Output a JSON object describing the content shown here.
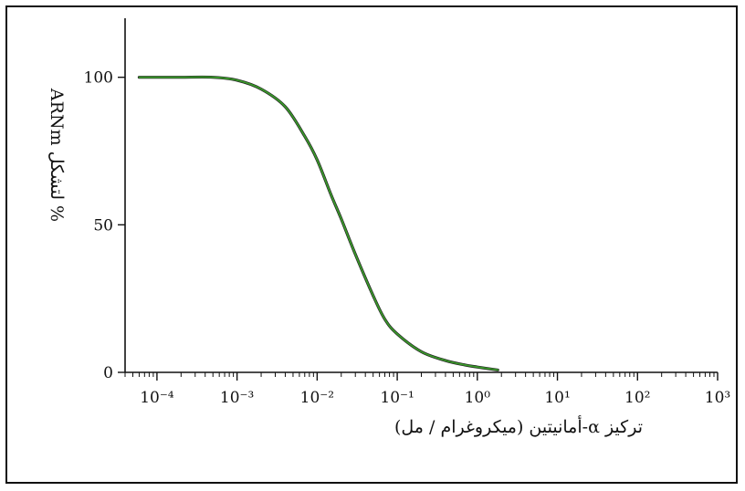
{
  "chart_data": {
    "type": "line",
    "x_scale": "log",
    "x_range": [
      4e-05,
      1000
    ],
    "y_range": [
      0,
      120
    ],
    "xlabel": "تركيز α-أمانيتين (ميكروغرام / مل)",
    "ylabel": "% لتشكل ARNm",
    "x_ticks": [
      {
        "value": 0.0001,
        "label": "10⁻⁴"
      },
      {
        "value": 0.001,
        "label": "10⁻³"
      },
      {
        "value": 0.01,
        "label": "10⁻²"
      },
      {
        "value": 0.1,
        "label": "10⁻¹"
      },
      {
        "value": 1,
        "label": "10⁰"
      },
      {
        "value": 10,
        "label": "10¹"
      },
      {
        "value": 100,
        "label": "10²"
      },
      {
        "value": 1000,
        "label": "10³"
      }
    ],
    "y_ticks": [
      {
        "value": 0,
        "label": "0"
      },
      {
        "value": 50,
        "label": "50"
      },
      {
        "value": 100,
        "label": "100"
      }
    ],
    "series": [
      {
        "color": "#3a9a2a",
        "x": [
          6e-05,
          0.0001,
          0.0002,
          0.0005,
          0.001,
          0.002,
          0.004,
          0.007,
          0.01,
          0.015,
          0.02,
          0.03,
          0.05,
          0.07,
          0.1,
          0.2,
          0.4,
          0.7,
          1,
          1.8
        ],
        "y": [
          100,
          100,
          100,
          100,
          99,
          96,
          90,
          80,
          72,
          60,
          52,
          40,
          26,
          18,
          13,
          7,
          4,
          2.5,
          1.8,
          0.8
        ]
      }
    ],
    "grid": false,
    "legend": "none"
  }
}
